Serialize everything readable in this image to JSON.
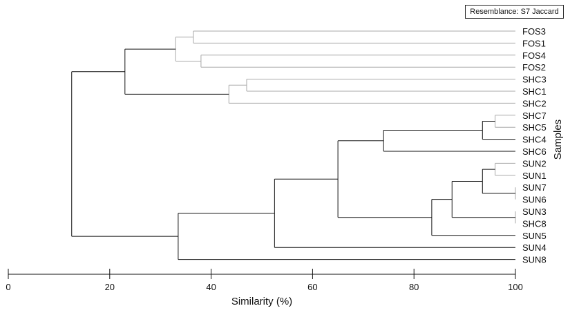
{
  "chart_data": {
    "type": "dendrogram",
    "resemblance_label": "Resemblance: S7 Jaccard",
    "xlabel": "Similarity (%)",
    "ylabel": "Samples",
    "xlim": [
      0,
      100
    ],
    "x_ticks": [
      0,
      20,
      40,
      60,
      80,
      100
    ],
    "leaves": [
      "FOS3",
      "FOS1",
      "FOS4",
      "FOS2",
      "SHC3",
      "SHC1",
      "SHC2",
      "SHC7",
      "SHC5",
      "SHC4",
      "SHC6",
      "SUN2",
      "SUN1",
      "SUN7",
      "SUN6",
      "SUN3",
      "SHC8",
      "SUN5",
      "SUN4",
      "SUN8"
    ],
    "merges": [
      {
        "a": "FOS3",
        "b": "FOS1",
        "similarity": 36.5,
        "style": "grey"
      },
      {
        "a": "FOS4",
        "b": "FOS2",
        "similarity": 38.0,
        "style": "grey"
      },
      {
        "a": "FOS3+FOS1",
        "b": "FOS4+FOS2",
        "similarity": 33.0,
        "style": "grey"
      },
      {
        "a": "SHC3",
        "b": "SHC1",
        "similarity": 47.0,
        "style": "grey"
      },
      {
        "a": "SHC3+SHC1",
        "b": "SHC2",
        "similarity": 43.5,
        "style": "grey"
      },
      {
        "a": "FOS group",
        "b": "SHC3+SHC1+SHC2",
        "similarity": 23.0,
        "style": "solid"
      },
      {
        "a": "SHC7",
        "b": "SHC5",
        "similarity": 96.0,
        "style": "grey"
      },
      {
        "a": "SHC7+SHC5",
        "b": "SHC4",
        "similarity": 93.5,
        "style": "solid"
      },
      {
        "a": "SHC7+SHC5+SHC4",
        "b": "SHC6",
        "similarity": 74.0,
        "style": "solid"
      },
      {
        "a": "SUN2",
        "b": "SUN1",
        "similarity": 96.0,
        "style": "grey"
      },
      {
        "a": "SUN7",
        "b": "SUN6",
        "similarity": 100,
        "style": "grey"
      },
      {
        "a": "SUN2+SUN1",
        "b": "SUN7+SUN6",
        "similarity": 93.5,
        "style": "solid"
      },
      {
        "a": "SUN3",
        "b": "SHC8",
        "similarity": 100,
        "style": "grey"
      },
      {
        "a": "SUN2+SUN1+SUN7+SUN6",
        "b": "SUN3+SHC8",
        "similarity": 87.5,
        "style": "solid"
      },
      {
        "a": "SUN2..SHC8",
        "b": "SUN5",
        "similarity": 83.5,
        "style": "solid"
      },
      {
        "a": "SHC7..SHC6",
        "b": "SUN2..SUN5",
        "similarity": 65.0,
        "style": "solid"
      },
      {
        "a": "SHC7..SUN5",
        "b": "SUN4",
        "similarity": 52.5,
        "style": "solid"
      },
      {
        "a": "SHC7..SUN4",
        "b": "SUN8",
        "similarity": 33.5,
        "style": "solid"
      },
      {
        "a": "FOS3..SHC2",
        "b": "SHC7..SUN8",
        "similarity": 12.5,
        "style": "solid"
      }
    ],
    "colors": {
      "solid": "#111111",
      "grey": "#a8a8a8"
    }
  }
}
